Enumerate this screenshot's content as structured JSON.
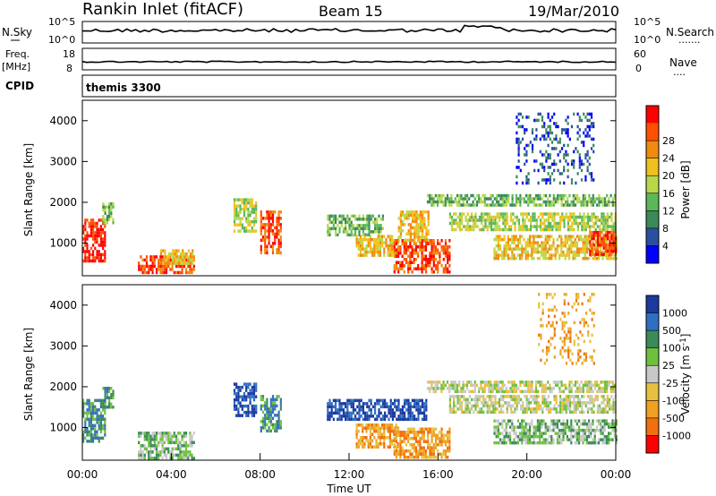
{
  "header": {
    "station": "Rankin Inlet (fitACF)",
    "beam": "Beam 15",
    "date": "19/Mar/2010"
  },
  "strip_labels": {
    "nsky": "N.Sky",
    "nsky_top": "10^5",
    "nsky_bottom": "10^0",
    "nsearch": "N.Search",
    "nsearch_top": "10^5",
    "nsearch_bottom": "10^0",
    "freq": "Freq.",
    "freq_unit": "[MHz]",
    "freq_top": "18",
    "freq_bottom": "8",
    "nave": "Nave",
    "nave_top": "60",
    "nave_bottom": "0",
    "cpid": "CPID",
    "cpid_text": "themis 3300"
  },
  "chart_data": [
    {
      "type": "heatmap",
      "panel": "power",
      "ylabel": "Slant Range [km]",
      "xlabel": "",
      "y_ticks": [
        "1000",
        "2000",
        "3000",
        "4000"
      ],
      "ylim": [
        200,
        4500
      ],
      "xlim": [
        0,
        24
      ],
      "colorbar_label": "Power [dB]",
      "colorbar_ticks": [
        "4",
        "8",
        "12",
        "16",
        "20",
        "24",
        "28"
      ],
      "colors": [
        "#0000ff",
        "#2b4fa0",
        "#3a8a5a",
        "#5ab85a",
        "#b8d84a",
        "#f0c020",
        "#f08a10",
        "#ff5000",
        "#ff0000"
      ],
      "regions": [
        {
          "t0": 0.0,
          "t1": 1.0,
          "r0": 600,
          "r1": 1600,
          "level": 8
        },
        {
          "t0": 0.9,
          "t1": 1.4,
          "r0": 1500,
          "r1": 2000,
          "level": 3
        },
        {
          "t0": 2.5,
          "t1": 5.0,
          "r0": 250,
          "r1": 700,
          "level": 7
        },
        {
          "t0": 3.5,
          "t1": 5.0,
          "r0": 500,
          "r1": 850,
          "level": 5
        },
        {
          "t0": 6.8,
          "t1": 7.8,
          "r0": 1300,
          "r1": 2100,
          "level": 4
        },
        {
          "t0": 8.0,
          "t1": 8.9,
          "r0": 800,
          "r1": 1800,
          "level": 7
        },
        {
          "t0": 11.0,
          "t1": 13.5,
          "r0": 1200,
          "r1": 1700,
          "level": 3
        },
        {
          "t0": 12.3,
          "t1": 14.2,
          "r0": 700,
          "r1": 1200,
          "level": 5
        },
        {
          "t0": 14.0,
          "t1": 16.5,
          "r0": 300,
          "r1": 1100,
          "level": 7
        },
        {
          "t0": 14.2,
          "t1": 15.6,
          "r0": 1100,
          "r1": 1800,
          "level": 5
        },
        {
          "t0": 15.5,
          "t1": 24.0,
          "r0": 1900,
          "r1": 2200,
          "level": 3
        },
        {
          "t0": 16.5,
          "t1": 24.0,
          "r0": 1300,
          "r1": 1750,
          "level": 4
        },
        {
          "t0": 18.5,
          "t1": 24.0,
          "r0": 600,
          "r1": 1200,
          "level": 5
        },
        {
          "t0": 22.8,
          "t1": 24.0,
          "r0": 700,
          "r1": 1300,
          "level": 7
        },
        {
          "t0": 19.5,
          "t1": 23.0,
          "r0": 2500,
          "r1": 4200,
          "level": 1
        }
      ]
    },
    {
      "type": "heatmap",
      "panel": "velocity",
      "ylabel": "Slant Range [km]",
      "xlabel": "Time UT",
      "x_ticks": [
        "00:00",
        "04:00",
        "08:00",
        "12:00",
        "16:00",
        "20:00",
        "00:00"
      ],
      "y_ticks": [
        "1000",
        "2000",
        "3000",
        "4000"
      ],
      "ylim": [
        200,
        4500
      ],
      "xlim": [
        0,
        24
      ],
      "colorbar_label": "Velocity [m s-1]",
      "colorbar_ticks": [
        "1000",
        "500",
        "100",
        "25",
        "-25",
        "-100",
        "-500",
        "-1000"
      ],
      "colors": [
        "#1a3aa0",
        "#2f6fc0",
        "#3c8a5a",
        "#70c040",
        "#c8c8c8",
        "#e8c040",
        "#f0a020",
        "#f07010",
        "#ff0000"
      ],
      "regions": [
        {
          "t0": 0.0,
          "t1": 1.0,
          "r0": 700,
          "r1": 1700,
          "level": 2
        },
        {
          "t0": 0.9,
          "t1": 1.4,
          "r0": 1500,
          "r1": 2000,
          "level": 2
        },
        {
          "t0": 2.5,
          "t1": 5.0,
          "r0": 250,
          "r1": 900,
          "level": 3
        },
        {
          "t0": 6.8,
          "t1": 7.8,
          "r0": 1300,
          "r1": 2100,
          "level": 0
        },
        {
          "t0": 8.0,
          "t1": 8.9,
          "r0": 900,
          "r1": 1800,
          "level": 2
        },
        {
          "t0": 11.0,
          "t1": 15.5,
          "r0": 1200,
          "r1": 1700,
          "level": 0
        },
        {
          "t0": 12.3,
          "t1": 14.2,
          "r0": 500,
          "r1": 1100,
          "level": 6
        },
        {
          "t0": 14.0,
          "t1": 16.5,
          "r0": 300,
          "r1": 1000,
          "level": 6
        },
        {
          "t0": 15.5,
          "t1": 24.0,
          "r0": 1900,
          "r1": 2150,
          "level": 4
        },
        {
          "t0": 16.5,
          "t1": 24.0,
          "r0": 1400,
          "r1": 1800,
          "level": 4
        },
        {
          "t0": 18.5,
          "t1": 24.0,
          "r0": 600,
          "r1": 1200,
          "level": 3
        },
        {
          "t0": 20.5,
          "t1": 23.0,
          "r0": 2600,
          "r1": 4300,
          "level": 6
        }
      ]
    }
  ]
}
